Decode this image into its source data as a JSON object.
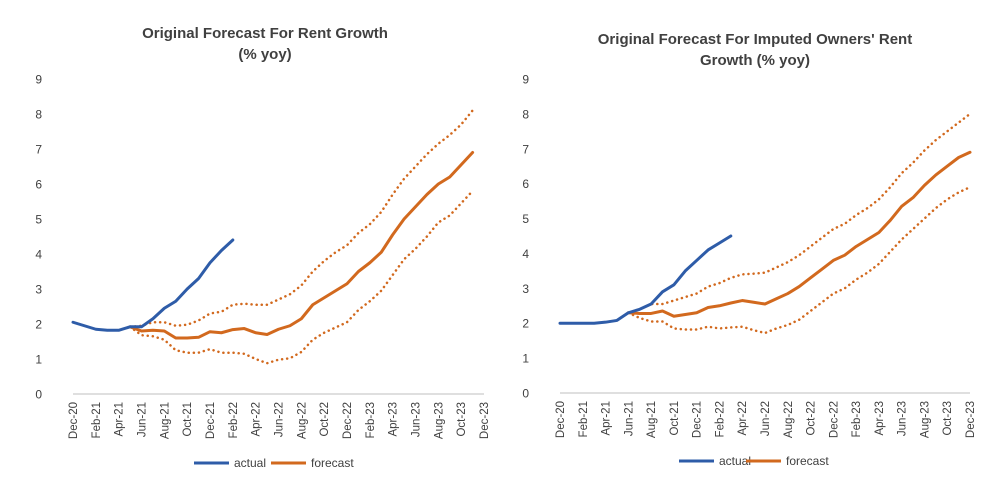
{
  "chart_data": [
    {
      "type": "line",
      "title_lines": [
        "Original Forecast For Rent Growth",
        "(% yoy)"
      ],
      "ylim": [
        0,
        9
      ],
      "yticks": [
        "0",
        "1",
        "2",
        "3",
        "4",
        "5",
        "6",
        "7",
        "8",
        "9"
      ],
      "x_tick_labels": [
        "Dec-20",
        "Feb-21",
        "Apr-21",
        "Jun-21",
        "Aug-21",
        "Oct-21",
        "Dec-21",
        "Feb-22",
        "Apr-22",
        "Jun-22",
        "Aug-22",
        "Oct-22",
        "Dec-22",
        "Feb-23",
        "Apr-23",
        "Jun-23",
        "Aug-23",
        "Oct-23",
        "Dec-23"
      ],
      "legend": [
        "actual",
        "forecast"
      ],
      "colors": {
        "actual": "#2E5CA8",
        "forecast": "#D2691E"
      },
      "series": [
        {
          "name": "actual",
          "style": "solid",
          "start_index": 0,
          "values": [
            2.05,
            1.95,
            1.85,
            1.82,
            1.82,
            1.92,
            1.92,
            2.15,
            2.45,
            2.65,
            3.0,
            3.3,
            3.75,
            4.1,
            4.4
          ]
        },
        {
          "name": "forecast",
          "style": "solid",
          "start_index": 5,
          "values": [
            1.92,
            1.8,
            1.82,
            1.8,
            1.6,
            1.6,
            1.62,
            1.78,
            1.75,
            1.84,
            1.87,
            1.75,
            1.7,
            1.85,
            1.95,
            2.15,
            2.55,
            2.75,
            2.95,
            3.15,
            3.5,
            3.75,
            4.05,
            4.55,
            5.0,
            5.35,
            5.7,
            6.0,
            6.2,
            6.55,
            6.9
          ]
        },
        {
          "name": "forecast-upper",
          "style": "dotted",
          "start_index": 5,
          "values": [
            1.92,
            1.95,
            2.05,
            2.05,
            1.95,
            1.98,
            2.1,
            2.3,
            2.35,
            2.55,
            2.58,
            2.55,
            2.55,
            2.7,
            2.85,
            3.1,
            3.5,
            3.8,
            4.05,
            4.25,
            4.6,
            4.85,
            5.2,
            5.7,
            6.15,
            6.5,
            6.85,
            7.15,
            7.4,
            7.7,
            8.1
          ]
        },
        {
          "name": "forecast-lower",
          "style": "dotted",
          "start_index": 5,
          "values": [
            1.92,
            1.68,
            1.65,
            1.55,
            1.25,
            1.18,
            1.18,
            1.28,
            1.18,
            1.18,
            1.15,
            1.0,
            0.88,
            0.98,
            1.02,
            1.2,
            1.55,
            1.75,
            1.9,
            2.05,
            2.4,
            2.65,
            2.95,
            3.4,
            3.85,
            4.15,
            4.5,
            4.9,
            5.1,
            5.45,
            5.8
          ]
        }
      ]
    },
    {
      "type": "line",
      "title_lines": [
        "Original Forecast For Imputed Owners' Rent",
        "Growth (% yoy)"
      ],
      "ylim": [
        0,
        9
      ],
      "yticks": [
        "0",
        "1",
        "2",
        "3",
        "4",
        "5",
        "6",
        "7",
        "8",
        "9"
      ],
      "x_tick_labels": [
        "Dec-20",
        "Feb-21",
        "Apr-21",
        "Jun-21",
        "Aug-21",
        "Oct-21",
        "Dec-21",
        "Feb-22",
        "Apr-22",
        "Jun-22",
        "Aug-22",
        "Oct-22",
        "Dec-22",
        "Feb-23",
        "Apr-23",
        "Jun-23",
        "Aug-23",
        "Oct-23",
        "Dec-23"
      ],
      "legend": [
        "actual",
        "forecast"
      ],
      "colors": {
        "actual": "#2E5CA8",
        "forecast": "#D2691E"
      },
      "series": [
        {
          "name": "actual",
          "style": "solid",
          "start_index": 0,
          "values": [
            2.0,
            2.0,
            2.0,
            2.0,
            2.03,
            2.08,
            2.3,
            2.4,
            2.55,
            2.9,
            3.1,
            3.5,
            3.8,
            4.1,
            4.3,
            4.5
          ]
        },
        {
          "name": "forecast",
          "style": "solid",
          "start_index": 6,
          "values": [
            2.3,
            2.28,
            2.28,
            2.35,
            2.2,
            2.25,
            2.3,
            2.45,
            2.5,
            2.58,
            2.65,
            2.6,
            2.55,
            2.7,
            2.85,
            3.05,
            3.3,
            3.55,
            3.8,
            3.95,
            4.2,
            4.4,
            4.6,
            4.95,
            5.35,
            5.6,
            5.95,
            6.25,
            6.5,
            6.75,
            6.9
          ]
        },
        {
          "name": "forecast-upper",
          "style": "dotted",
          "start_index": 6,
          "values": [
            2.3,
            2.4,
            2.55,
            2.55,
            2.65,
            2.75,
            2.85,
            3.05,
            3.15,
            3.3,
            3.4,
            3.42,
            3.45,
            3.6,
            3.75,
            3.95,
            4.2,
            4.45,
            4.7,
            4.85,
            5.1,
            5.3,
            5.55,
            5.9,
            6.3,
            6.6,
            6.95,
            7.25,
            7.5,
            7.75,
            8.0
          ]
        },
        {
          "name": "forecast-lower",
          "style": "dotted",
          "start_index": 6,
          "values": [
            2.3,
            2.15,
            2.05,
            2.05,
            1.85,
            1.82,
            1.82,
            1.9,
            1.85,
            1.88,
            1.9,
            1.8,
            1.72,
            1.85,
            1.95,
            2.1,
            2.35,
            2.6,
            2.85,
            3.0,
            3.25,
            3.45,
            3.7,
            4.05,
            4.4,
            4.7,
            5.0,
            5.3,
            5.55,
            5.75,
            5.9
          ]
        }
      ]
    }
  ]
}
